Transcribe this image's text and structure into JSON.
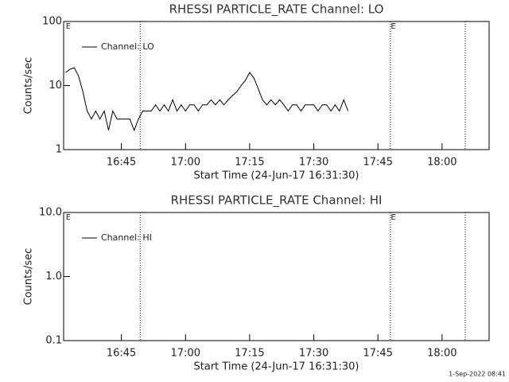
{
  "chart_data": [
    {
      "type": "line",
      "title": "RHESSI PARTICLE_RATE Channel: LO",
      "xlabel": "Start Time (24-Jun-17 16:31:30)",
      "ylabel": "Counts/sec",
      "log_y": true,
      "legend": "upper left",
      "xlim": [
        "16:31:30",
        "18:11:00"
      ],
      "xticks": [
        "16:45",
        "17:00",
        "17:15",
        "17:30",
        "17:45",
        "18:00"
      ],
      "ylim": [
        1,
        100
      ],
      "yticks": [
        1,
        10,
        100
      ],
      "event_lines": [
        "16:49:24",
        "17:47:55",
        "18:05:25"
      ],
      "event_labels": [
        {
          "x": "16:32",
          "label": "E"
        },
        {
          "x": "17:48",
          "label": "E"
        }
      ],
      "x": [
        "16:32",
        "16:33",
        "16:34",
        "16:35",
        "16:36",
        "16:37",
        "16:38",
        "16:39",
        "16:40",
        "16:41",
        "16:42",
        "16:43",
        "16:44",
        "16:45",
        "16:46",
        "16:47",
        "16:48",
        "16:49",
        "16:50",
        "16:51",
        "16:52",
        "16:53",
        "16:54",
        "16:55",
        "16:56",
        "16:57",
        "16:58",
        "16:59",
        "17:00",
        "17:01",
        "17:02",
        "17:03",
        "17:04",
        "17:05",
        "17:06",
        "17:07",
        "17:08",
        "17:09",
        "17:10",
        "17:11",
        "17:12",
        "17:13",
        "17:14",
        "17:15",
        "17:16",
        "17:17",
        "17:18",
        "17:19",
        "17:20",
        "17:21",
        "17:22",
        "17:23",
        "17:24",
        "17:25",
        "17:26",
        "17:27",
        "17:28",
        "17:29",
        "17:30",
        "17:31",
        "17:32",
        "17:33",
        "17:34",
        "17:35",
        "17:36",
        "17:37",
        "17:38"
      ],
      "series": [
        {
          "name": "Channel: LO",
          "color": "#000000",
          "values": [
            16,
            18,
            19,
            14,
            8,
            4,
            3,
            4,
            3,
            4,
            2,
            4,
            3,
            3,
            3,
            3,
            2,
            3,
            4,
            4,
            4,
            5,
            4,
            5,
            4,
            6,
            4,
            5,
            4,
            5,
            5,
            4,
            5,
            5,
            6,
            5,
            6,
            5,
            6,
            7,
            8,
            10,
            12,
            16,
            13,
            9,
            6,
            5,
            6,
            5,
            6,
            5,
            4,
            5,
            5,
            4,
            5,
            5,
            5,
            4,
            5,
            5,
            4,
            5,
            4,
            6,
            4
          ]
        }
      ]
    },
    {
      "type": "line",
      "title": "RHESSI PARTICLE_RATE Channel: HI",
      "xlabel": "Start Time (24-Jun-17 16:31:30)",
      "ylabel": "Counts/sec",
      "log_y": true,
      "legend": "upper left",
      "xlim": [
        "16:31:30",
        "18:11:00"
      ],
      "xticks": [
        "16:45",
        "17:00",
        "17:15",
        "17:30",
        "17:45",
        "18:00"
      ],
      "ylim": [
        0.1,
        10
      ],
      "yticks": [
        0.1,
        {
          "value": 1,
          "label": "1.0"
        },
        {
          "value": 10,
          "label": "10.0"
        }
      ],
      "event_lines": [
        "16:49:24",
        "17:47:55",
        "18:05:25"
      ],
      "event_labels": [
        {
          "x": "16:32",
          "label": "E"
        },
        {
          "x": "17:48",
          "label": "E"
        }
      ],
      "x": [],
      "series": [
        {
          "name": "Channel: HI",
          "color": "#000000",
          "values": []
        }
      ]
    }
  ],
  "footer": "1-Sep-2022 08:41"
}
